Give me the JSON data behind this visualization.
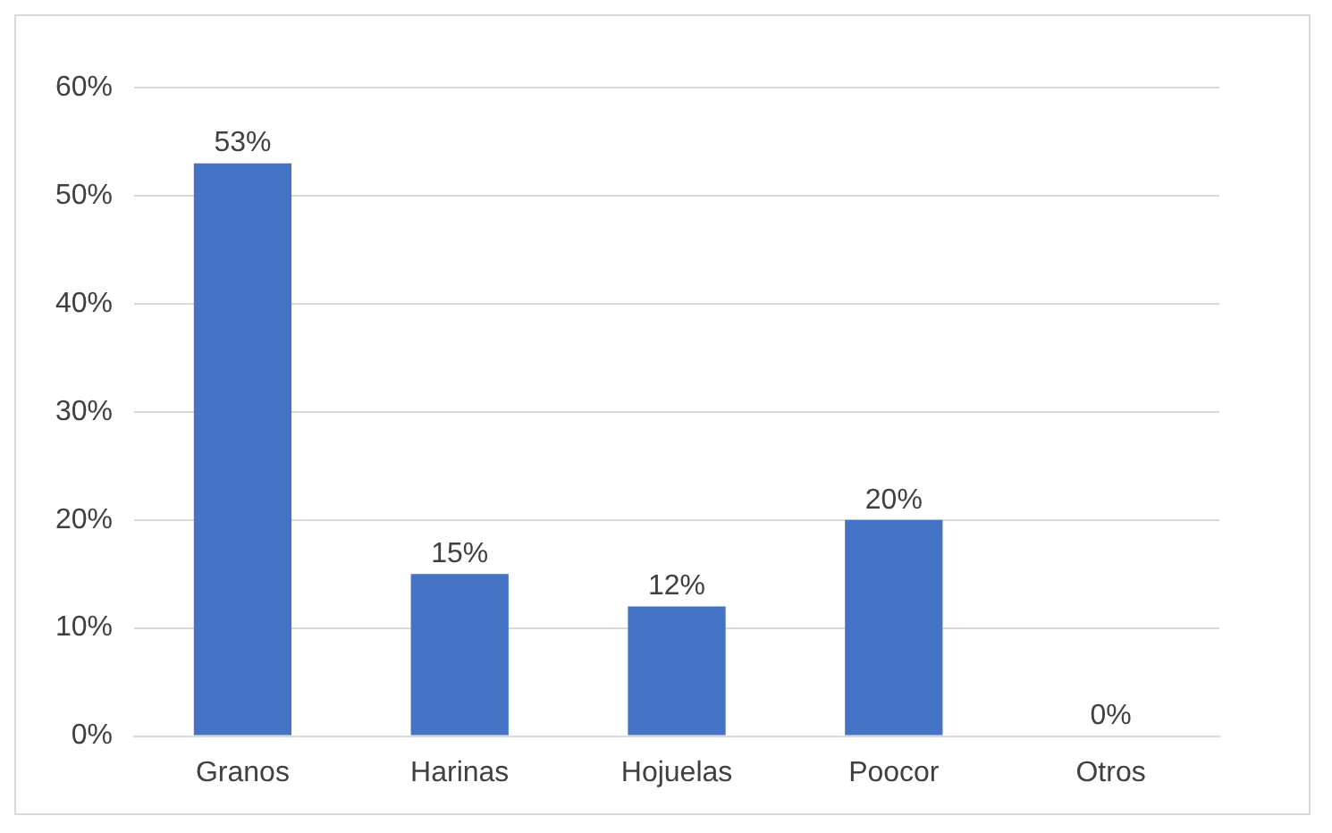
{
  "chart_data": {
    "type": "bar",
    "categories": [
      "Granos",
      "Harinas",
      "Hojuelas",
      "Poocor",
      "Otros"
    ],
    "values": [
      53,
      15,
      12,
      20,
      0
    ],
    "color": "#4472c4",
    "value_labels": [
      "53%",
      "15%",
      "12%",
      "20%",
      "0%"
    ],
    "ylim": [
      0,
      60
    ],
    "yticks": [
      {
        "value": 0,
        "label": "0%"
      },
      {
        "value": 10,
        "label": "10%"
      },
      {
        "value": 20,
        "label": "20%"
      },
      {
        "value": 30,
        "label": "30%"
      },
      {
        "value": 40,
        "label": "40%"
      },
      {
        "value": 50,
        "label": "50%"
      },
      {
        "value": 60,
        "label": "60%"
      }
    ],
    "grid": "y",
    "legend": false
  }
}
